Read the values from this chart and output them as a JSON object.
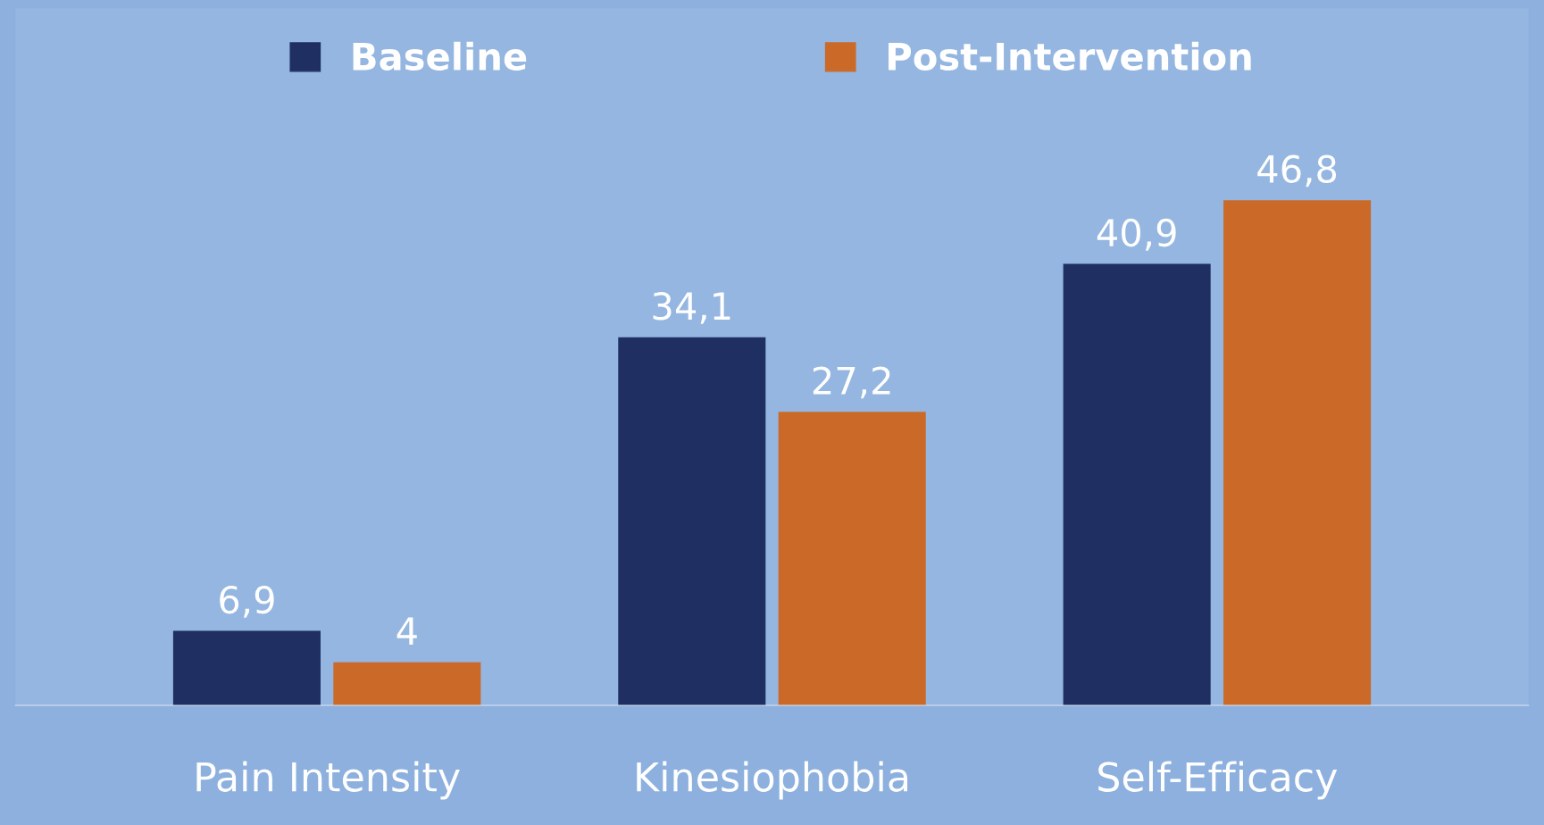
{
  "chart_data": {
    "type": "bar",
    "categories": [
      "Pain Intensity",
      "Kinesiophobia",
      "Self-Efficacy"
    ],
    "series": [
      {
        "name": "Baseline",
        "color": "#1f2f61",
        "values": [
          6.9,
          34.1,
          40.9
        ],
        "value_labels": [
          "6,9",
          "34,1",
          "40,9"
        ]
      },
      {
        "name": "Post-Intervention",
        "color": "#cb6a28",
        "values": [
          4,
          27.2,
          46.8
        ],
        "value_labels": [
          "4",
          "27,2",
          "46,8"
        ]
      }
    ],
    "legend": "top",
    "grid": false
  }
}
